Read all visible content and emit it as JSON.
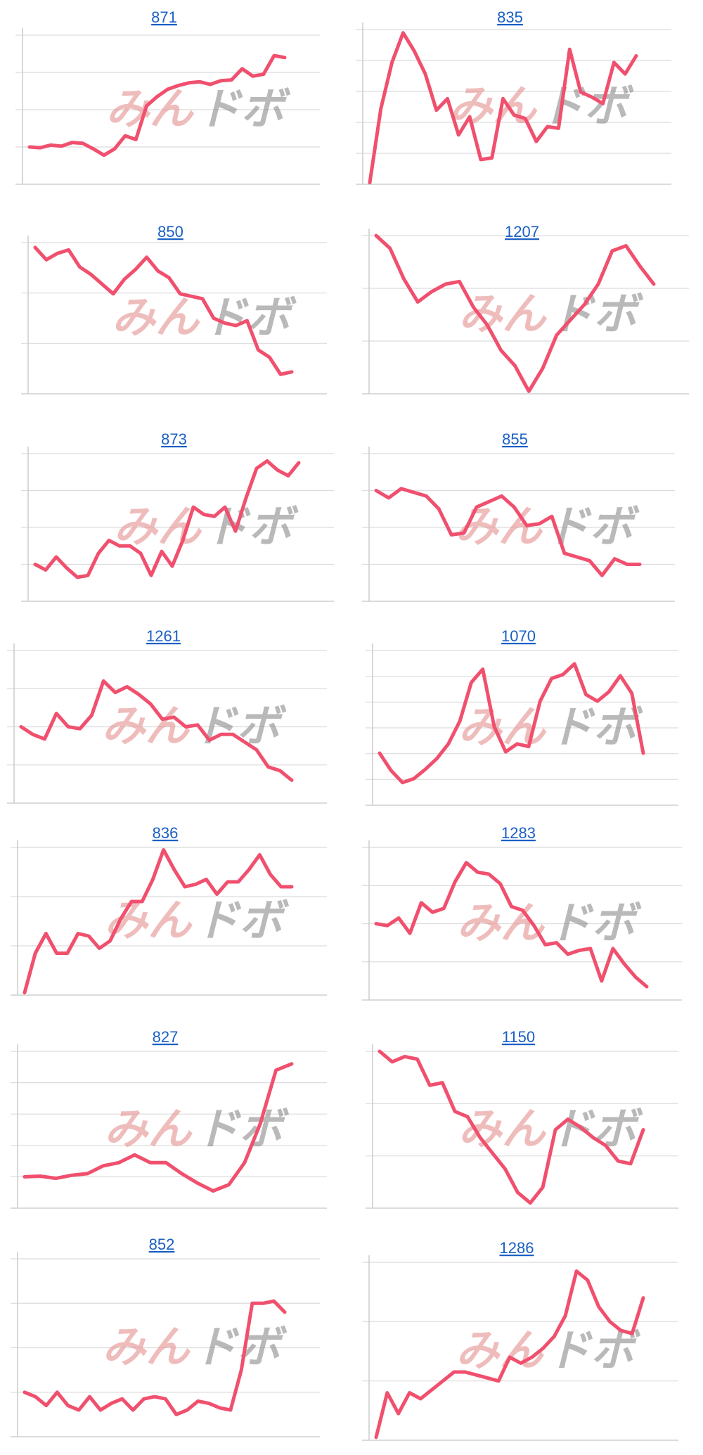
{
  "colors": {
    "line": "#f0506e",
    "link": "#1a5fc4",
    "grid": "#dcdcdc"
  },
  "watermark": {
    "part1": "みん",
    "part2": "ドボ"
  },
  "chart_data": [
    {
      "type": "line",
      "title": "871",
      "ylim": [
        0,
        4
      ],
      "values": [
        1,
        0.98,
        1.05,
        1.02,
        1.12,
        1.1,
        0.95,
        0.78,
        0.95,
        1.3,
        1.2,
        2.1,
        2.35,
        2.55,
        2.65,
        2.72,
        2.75,
        2.68,
        2.78,
        2.8,
        3.1,
        2.9,
        2.95,
        3.45,
        3.4
      ]
    },
    {
      "type": "line",
      "title": "835",
      "ylim": [
        0,
        4.7
      ],
      "values": [
        0.05,
        2.3,
        3.7,
        4.6,
        4.05,
        3.35,
        2.25,
        2.6,
        1.5,
        2.05,
        0.75,
        0.8,
        2.6,
        2.1,
        2.0,
        1.3,
        1.75,
        1.7,
        4.1,
        2.8,
        2.65,
        2.45,
        3.7,
        3.35,
        3.9
      ]
    },
    {
      "type": "line",
      "title": "850",
      "ylim": [
        0,
        3.1
      ],
      "values": [
        3.0,
        2.75,
        2.88,
        2.95,
        2.6,
        2.45,
        2.25,
        2.05,
        2.35,
        2.55,
        2.8,
        2.52,
        2.38,
        2.05,
        2.0,
        1.95,
        1.55,
        1.45,
        1.4,
        1.5,
        0.9,
        0.75,
        0.4,
        0.45
      ]
    },
    {
      "type": "line",
      "title": "1207",
      "ylim": [
        0,
        3.1
      ],
      "values": [
        3.1,
        2.85,
        2.25,
        1.8,
        2.0,
        2.15,
        2.2,
        1.7,
        1.35,
        0.85,
        0.55,
        0.05,
        0.5,
        1.15,
        1.45,
        1.75,
        2.15,
        2.8,
        2.9,
        2.5,
        2.15
      ]
    },
    {
      "type": "line",
      "title": "873",
      "ylim": [
        0,
        4
      ],
      "values": [
        1.0,
        0.85,
        1.2,
        0.9,
        0.65,
        0.7,
        1.3,
        1.65,
        1.5,
        1.5,
        1.3,
        0.7,
        1.35,
        0.95,
        1.65,
        2.55,
        2.35,
        2.3,
        2.55,
        1.9,
        2.8,
        3.6,
        3.8,
        3.55,
        3.4,
        3.75
      ]
    },
    {
      "type": "line",
      "title": "855",
      "ylim": [
        0,
        4
      ],
      "values": [
        3.0,
        2.8,
        3.05,
        2.95,
        2.85,
        2.5,
        1.8,
        1.85,
        2.55,
        2.7,
        2.85,
        2.55,
        2.05,
        2.1,
        2.3,
        1.3,
        1.2,
        1.1,
        0.7,
        1.15,
        1.0,
        1.0
      ]
    },
    {
      "type": "line",
      "title": "1261",
      "ylim": [
        0,
        4
      ],
      "values": [
        2.0,
        1.8,
        1.68,
        2.35,
        2.0,
        1.95,
        2.3,
        3.2,
        2.9,
        3.05,
        2.85,
        2.6,
        2.2,
        2.25,
        2.0,
        2.05,
        1.65,
        1.8,
        1.8,
        1.6,
        1.4,
        0.95,
        0.85,
        0.6
      ]
    },
    {
      "type": "line",
      "title": "1070",
      "ylim": [
        0,
        5.8
      ],
      "values": [
        1.95,
        1.3,
        0.85,
        1.0,
        1.35,
        1.75,
        2.3,
        3.15,
        4.6,
        5.1,
        2.95,
        2.0,
        2.3,
        2.2,
        3.9,
        4.75,
        4.9,
        5.3,
        4.15,
        3.9,
        4.25,
        4.85,
        4.2,
        1.95
      ]
    },
    {
      "type": "line",
      "title": "836",
      "ylim": [
        0,
        3
      ],
      "values": [
        0.05,
        0.85,
        1.25,
        0.85,
        0.85,
        1.25,
        1.2,
        0.95,
        1.1,
        1.55,
        1.9,
        1.9,
        2.35,
        2.95,
        2.55,
        2.2,
        2.25,
        2.35,
        2.05,
        2.3,
        2.3,
        2.55,
        2.85,
        2.45,
        2.2,
        2.2
      ]
    },
    {
      "type": "line",
      "title": "1283",
      "ylim": [
        0,
        4
      ],
      "values": [
        2.0,
        1.95,
        2.15,
        1.75,
        2.55,
        2.3,
        2.4,
        3.1,
        3.6,
        3.35,
        3.3,
        3.05,
        2.45,
        2.35,
        1.95,
        1.45,
        1.5,
        1.2,
        1.3,
        1.35,
        0.5,
        1.35,
        0.95,
        0.6,
        0.35
      ]
    },
    {
      "type": "line",
      "title": "827",
      "ylim": [
        0,
        5
      ],
      "values": [
        1.0,
        1.02,
        0.95,
        1.05,
        1.1,
        1.35,
        1.45,
        1.7,
        1.45,
        1.45,
        1.1,
        0.8,
        0.55,
        0.75,
        1.45,
        2.7,
        4.4,
        4.6
      ]
    },
    {
      "type": "line",
      "title": "1150",
      "ylim": [
        0,
        3
      ],
      "values": [
        3.0,
        2.8,
        2.9,
        2.85,
        2.35,
        2.4,
        1.85,
        1.75,
        1.35,
        1.05,
        0.75,
        0.3,
        0.1,
        0.4,
        1.5,
        1.7,
        1.55,
        1.35,
        1.2,
        0.9,
        0.85,
        1.5
      ]
    },
    {
      "type": "line",
      "title": "852",
      "ylim": [
        0,
        4
      ],
      "values": [
        1.0,
        0.9,
        0.7,
        1.0,
        0.7,
        0.6,
        0.9,
        0.6,
        0.75,
        0.85,
        0.6,
        0.85,
        0.9,
        0.85,
        0.5,
        0.6,
        0.8,
        0.75,
        0.65,
        0.6,
        1.5,
        3.0,
        3.0,
        3.05,
        2.8
      ]
    },
    {
      "type": "line",
      "title": "1286",
      "ylim": [
        0,
        3
      ],
      "values": [
        0.05,
        0.8,
        0.45,
        0.8,
        0.7,
        0.85,
        1.0,
        1.15,
        1.15,
        1.1,
        1.05,
        1.0,
        1.4,
        1.3,
        1.4,
        1.55,
        1.75,
        2.1,
        2.85,
        2.7,
        2.25,
        2.0,
        1.85,
        1.8,
        2.4
      ]
    }
  ]
}
